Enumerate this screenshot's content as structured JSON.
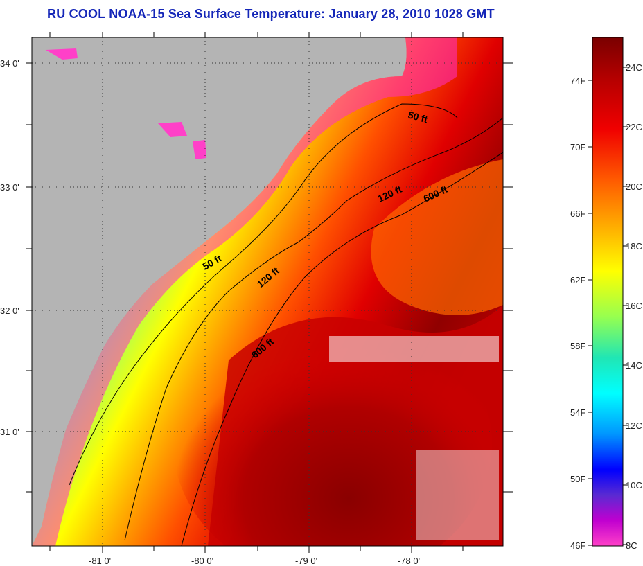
{
  "title": "RU COOL  NOAA-15  Sea Surface Temperature:  January 28, 2010 1028 GMT",
  "map": {
    "lat_labels": [
      "34 0'",
      "33 0'",
      "32 0'",
      "31 0'"
    ],
    "lon_labels": [
      "-81 0'",
      "-80 0'",
      "-79 0'",
      "-78 0'"
    ],
    "contours": {
      "c50_a": "50 ft",
      "c50_b": "50 ft",
      "c120_a": "120 ft",
      "c120_b": "120 ft",
      "c600_a": "600 ft",
      "c600_b": "600 ft"
    },
    "colors": {
      "land": "#b4b4b4",
      "nodata_land": "#a8a8a8"
    }
  },
  "colorbar": {
    "fahrenheit_labels": [
      "74F",
      "70F",
      "66F",
      "62F",
      "58F",
      "54F",
      "50F",
      "46F"
    ],
    "celsius_labels": [
      "24C",
      "22C",
      "20C",
      "18C",
      "16C",
      "14C",
      "12C",
      "10C",
      "8C"
    ],
    "gradient": [
      "#7a0000",
      "#c80000",
      "#ff3000",
      "#ff8c00",
      "#ffd200",
      "#ffff00",
      "#b4ff3c",
      "#28e6a0",
      "#00ffff",
      "#0096ff",
      "#0000ff",
      "#7828d2",
      "#c800c8",
      "#ff32c8"
    ]
  }
}
